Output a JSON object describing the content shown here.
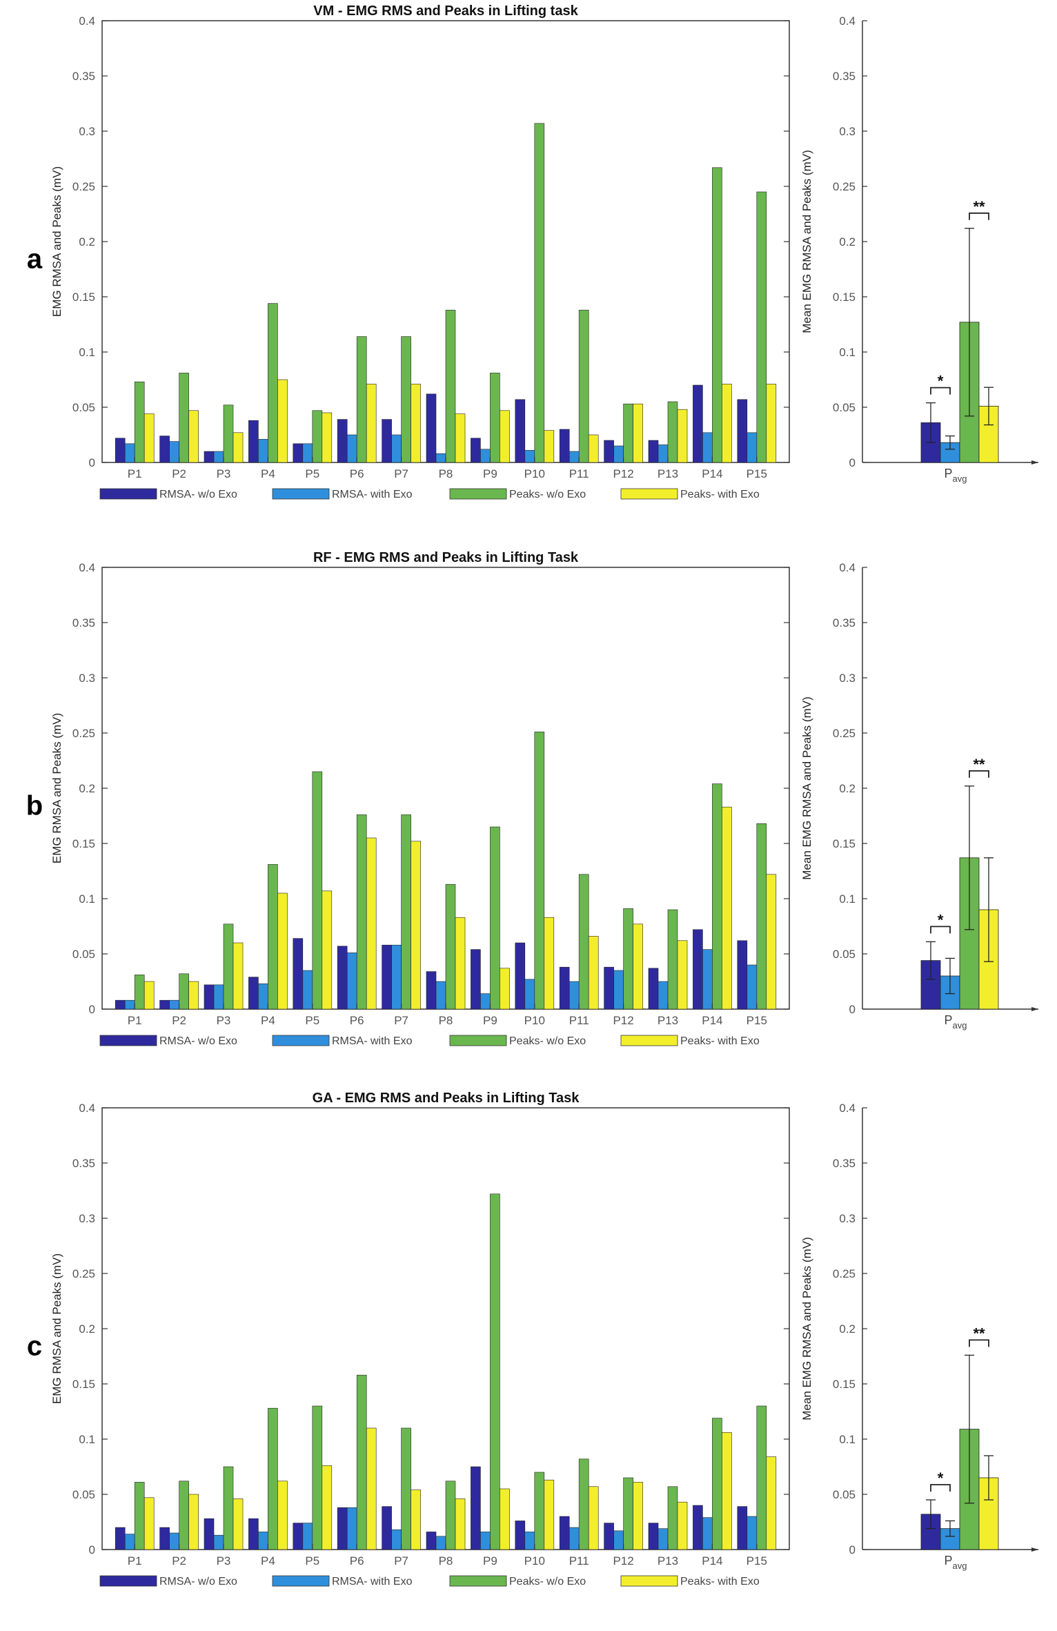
{
  "legend": [
    "RMSA- w/o Exo",
    "RMSA- with Exo",
    "Peaks- w/o Exo",
    "Peaks- with Exo"
  ],
  "colors": {
    "rms_without": "#2e2a9e",
    "rms_with": "#2f8fdc",
    "peaks_without": "#6ab64f",
    "peaks_with": "#f3ee2b"
  },
  "chart_data": [
    {
      "type": "bar",
      "panel": "a",
      "title": "VM - EMG RMS and Peaks in Lifting task",
      "ylabel": "EMG RMSA and Peaks (mV)",
      "ylim": [
        0,
        0.4
      ],
      "yticks": [
        "0",
        "0.05",
        "0.1",
        "0.15",
        "0.2",
        "0.25",
        "0.3",
        "0.35",
        "0.4"
      ],
      "categories": [
        "P1",
        "P2",
        "P3",
        "P4",
        "P5",
        "P6",
        "P7",
        "P8",
        "P9",
        "P10",
        "P11",
        "P12",
        "P13",
        "P14",
        "P15"
      ],
      "series": [
        {
          "name": "RMSA- w/o Exo",
          "values": [
            0.022,
            0.024,
            0.01,
            0.038,
            0.017,
            0.039,
            0.039,
            0.062,
            0.022,
            0.057,
            0.03,
            0.02,
            0.02,
            0.07,
            0.057
          ]
        },
        {
          "name": "RMSA- with Exo",
          "values": [
            0.017,
            0.019,
            0.01,
            0.021,
            0.017,
            0.025,
            0.025,
            0.008,
            0.012,
            0.011,
            0.01,
            0.015,
            0.016,
            0.027,
            0.027
          ]
        },
        {
          "name": "Peaks- w/o Exo",
          "values": [
            0.073,
            0.081,
            0.052,
            0.144,
            0.047,
            0.114,
            0.114,
            0.138,
            0.081,
            0.307,
            0.138,
            0.053,
            0.055,
            0.267,
            0.245
          ]
        },
        {
          "name": "Peaks- with Exo",
          "values": [
            0.044,
            0.047,
            0.027,
            0.075,
            0.045,
            0.071,
            0.071,
            0.044,
            0.047,
            0.029,
            0.025,
            0.053,
            0.048,
            0.071,
            0.071
          ]
        }
      ],
      "summary": {
        "ylabel": "Mean EMG RMSA and Peaks (mV)",
        "xlabel_main": "P",
        "xlabel_sub": "avg",
        "means": [
          0.036,
          0.018,
          0.127,
          0.051
        ],
        "errors": [
          0.018,
          0.006,
          0.085,
          0.017
        ],
        "sig_markers": [
          "*",
          "**"
        ]
      }
    },
    {
      "type": "bar",
      "panel": "b",
      "title": "RF - EMG RMS and Peaks in Lifting Task",
      "ylabel": "EMG RMSA and Peaks (mV)",
      "ylim": [
        0,
        0.4
      ],
      "yticks": [
        "0",
        "0.05",
        "0.1",
        "0.15",
        "0.2",
        "0.25",
        "0.3",
        "0.35",
        "0.4"
      ],
      "categories": [
        "P1",
        "P2",
        "P3",
        "P4",
        "P5",
        "P6",
        "P7",
        "P8",
        "P9",
        "P10",
        "P11",
        "P12",
        "P13",
        "P14",
        "P15"
      ],
      "series": [
        {
          "name": "RMSA- w/o Exo",
          "values": [
            0.008,
            0.008,
            0.022,
            0.029,
            0.064,
            0.057,
            0.058,
            0.034,
            0.054,
            0.06,
            0.038,
            0.038,
            0.037,
            0.072,
            0.062
          ]
        },
        {
          "name": "RMSA- with Exo",
          "values": [
            0.008,
            0.008,
            0.022,
            0.023,
            0.035,
            0.051,
            0.058,
            0.025,
            0.014,
            0.027,
            0.025,
            0.035,
            0.025,
            0.054,
            0.04
          ]
        },
        {
          "name": "Peaks- w/o Exo",
          "values": [
            0.031,
            0.032,
            0.077,
            0.131,
            0.215,
            0.176,
            0.176,
            0.113,
            0.165,
            0.251,
            0.122,
            0.091,
            0.09,
            0.204,
            0.168
          ]
        },
        {
          "name": "Peaks- with Exo",
          "values": [
            0.025,
            0.025,
            0.06,
            0.105,
            0.107,
            0.155,
            0.152,
            0.083,
            0.037,
            0.083,
            0.066,
            0.077,
            0.062,
            0.183,
            0.122
          ]
        }
      ],
      "summary": {
        "ylabel": "Mean EMG RMSA and Peaks (mV)",
        "xlabel_main": "P",
        "xlabel_sub": "avg",
        "means": [
          0.044,
          0.03,
          0.137,
          0.09
        ],
        "errors": [
          0.017,
          0.016,
          0.065,
          0.047
        ],
        "sig_markers": [
          "*",
          "**"
        ]
      }
    },
    {
      "type": "bar",
      "panel": "c",
      "title": "GA - EMG RMS and Peaks in Lifting Task",
      "ylabel": "EMG RMSA and Peaks (mV)",
      "ylim": [
        0,
        0.4
      ],
      "yticks": [
        "0",
        "0.05",
        "0.1",
        "0.15",
        "0.2",
        "0.25",
        "0.3",
        "0.35",
        "0.4"
      ],
      "categories": [
        "P1",
        "P2",
        "P3",
        "P4",
        "P5",
        "P6",
        "P7",
        "P8",
        "P9",
        "P10",
        "P11",
        "P12",
        "P13",
        "P14",
        "P15"
      ],
      "series": [
        {
          "name": "RMSA- w/o Exo",
          "values": [
            0.02,
            0.02,
            0.028,
            0.028,
            0.024,
            0.038,
            0.039,
            0.016,
            0.075,
            0.026,
            0.03,
            0.024,
            0.024,
            0.04,
            0.039
          ]
        },
        {
          "name": "RMSA- with Exo",
          "values": [
            0.014,
            0.015,
            0.013,
            0.016,
            0.024,
            0.038,
            0.018,
            0.012,
            0.016,
            0.016,
            0.02,
            0.017,
            0.019,
            0.029,
            0.03
          ]
        },
        {
          "name": "Peaks- w/o Exo",
          "values": [
            0.061,
            0.062,
            0.075,
            0.128,
            0.13,
            0.158,
            0.11,
            0.062,
            0.322,
            0.07,
            0.082,
            0.065,
            0.057,
            0.119,
            0.13
          ]
        },
        {
          "name": "Peaks- with Exo",
          "values": [
            0.047,
            0.05,
            0.046,
            0.062,
            0.076,
            0.11,
            0.054,
            0.046,
            0.055,
            0.063,
            0.057,
            0.061,
            0.043,
            0.106,
            0.084
          ]
        }
      ],
      "summary": {
        "ylabel": "Mean EMG RMSA and Peaks (mV)",
        "xlabel_main": "P",
        "xlabel_sub": "avg",
        "means": [
          0.032,
          0.019,
          0.109,
          0.065
        ],
        "errors": [
          0.013,
          0.007,
          0.067,
          0.02
        ],
        "sig_markers": [
          "*",
          "**"
        ]
      }
    }
  ]
}
